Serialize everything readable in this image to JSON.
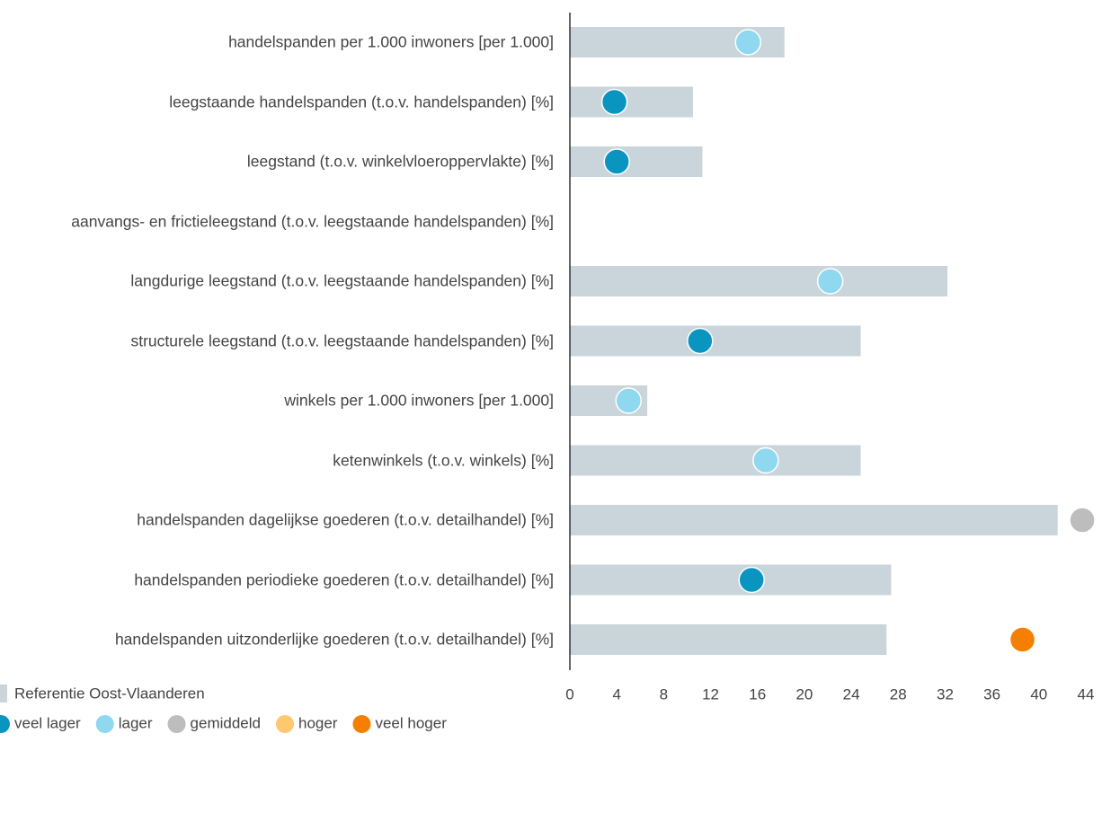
{
  "chart_data": {
    "type": "bar-dot",
    "categories": [
      "handelspanden per 1.000 inwoners [per 1.000]",
      "leegstaande handelspanden (t.o.v. handelspanden) [%]",
      "leegstand (t.o.v. winkelvloeroppervlakte) [%]",
      "aanvangs- en frictieleegstand (t.o.v. leegstaande handelspanden) [%]",
      "langdurige leegstand (t.o.v. leegstaande handelspanden) [%]",
      "structurele leegstand (t.o.v. leegstaande handelspanden) [%]",
      "winkels per 1.000 inwoners [per 1.000]",
      "ketenwinkels (t.o.v. winkels) [%]",
      "handelspanden dagelijkse goederen (t.o.v. detailhandel) [%]",
      "handelspanden periodieke goederen (t.o.v. detailhandel) [%]",
      "handelspanden uitzonderlijke goederen (t.o.v. detailhandel) [%]"
    ],
    "series": [
      {
        "name": "Referentie Oost-Vlaanderen",
        "color": "#c9d5db",
        "values": [
          18.3,
          10.5,
          11.3,
          null,
          32.2,
          24.8,
          6.6,
          24.8,
          41.6,
          27.4,
          27.0
        ]
      },
      {
        "values": [
          15.2,
          3.8,
          4.0,
          null,
          22.2,
          11.1,
          5.0,
          16.7,
          43.7,
          15.5,
          38.6
        ],
        "point_classes": [
          "lager",
          "veel lager",
          "veel lager",
          null,
          "lager",
          "veel lager",
          "lager",
          "lager",
          "gemiddeld",
          "veel lager",
          "veel hoger"
        ]
      }
    ],
    "classes": [
      {
        "name": "veel lager",
        "color": "#0a95c0"
      },
      {
        "name": "lager",
        "color": "#8fd8ef"
      },
      {
        "name": "gemiddeld",
        "color": "#bdbdbd"
      },
      {
        "name": "hoger",
        "color": "#fdc86f"
      },
      {
        "name": "veel hoger",
        "color": "#f57f00"
      }
    ],
    "xlim": [
      0,
      44
    ],
    "xticks": [
      0,
      4,
      8,
      12,
      16,
      20,
      24,
      28,
      32,
      36,
      40,
      44
    ]
  }
}
